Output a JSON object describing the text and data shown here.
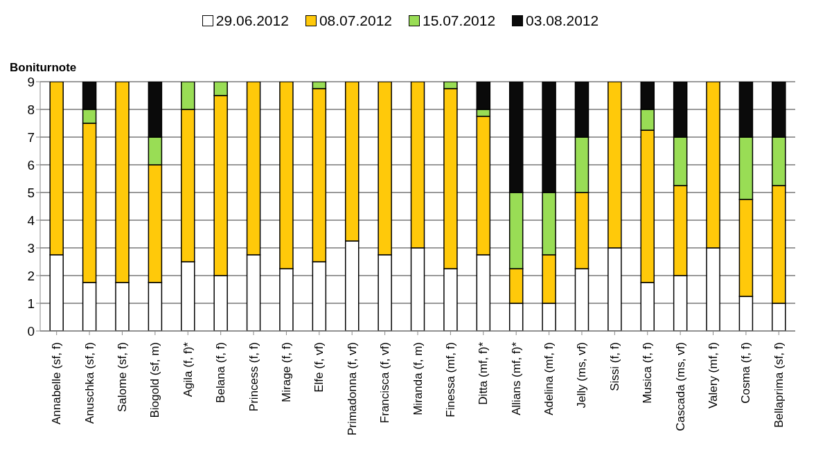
{
  "chart_data": {
    "type": "bar",
    "stacked": true,
    "ylabel": "Boniturnote",
    "legend": "top",
    "grid": "y",
    "categories": [
      "Annabelle (sf, f)",
      "Anuschka (sf, f)",
      "Salome (sf, f)",
      "Biogold (sf, m)",
      "Agila (f, f)*",
      "Belana (f, f)",
      "Princess (f, f)",
      "Mirage (f, f)",
      "Elfe (f, vf)",
      "Primadonna (f, vf)",
      "Francisca (f, vf)",
      "Miranda (f, m)",
      "Finessa (mf, f)",
      "Ditta (mf, f)*",
      "Allians (mf, f)*",
      "Adelina (mf, f)",
      "Jelly (ms, vf)",
      "Sissi (f, f)",
      "Musica (f, f)",
      "Cascada (ms, vf)",
      "Valery (mf, f)",
      "Cosma (f, f)",
      "Bellaprima (sf, f)"
    ],
    "ylim": [
      0,
      9
    ],
    "yticks": [
      0,
      1,
      2,
      3,
      4,
      5,
      6,
      7,
      8,
      9
    ],
    "series": [
      {
        "name": "29.06.2012",
        "color": "#ffffff",
        "values": [
          2.75,
          1.75,
          1.75,
          1.75,
          2.5,
          2,
          2.75,
          2.25,
          2.5,
          3.25,
          2.75,
          3,
          2.25,
          2.75,
          1,
          1,
          2.25,
          3,
          1.75,
          2,
          3,
          1.25,
          1
        ]
      },
      {
        "name": "08.07.2012",
        "color": "#ffc90a",
        "values": [
          6.25,
          5.75,
          7.25,
          4.25,
          5.5,
          6.5,
          6.25,
          6.75,
          6.25,
          5.75,
          6.25,
          6,
          6.5,
          5,
          1.25,
          1.75,
          2.75,
          6,
          5.5,
          3.25,
          6,
          3.5,
          4.25
        ]
      },
      {
        "name": "15.07.2012",
        "color": "#99dd55",
        "values": [
          0,
          0.5,
          0,
          1,
          1,
          0.5,
          0,
          0,
          0.25,
          0,
          0,
          0,
          0.25,
          0.25,
          2.75,
          2.25,
          2,
          0,
          0.75,
          1.75,
          0,
          2.25,
          1.75
        ]
      },
      {
        "name": "03.08.2012",
        "color": "#0a0a0a",
        "values": [
          0,
          1,
          0,
          2,
          0,
          0,
          0,
          0,
          0,
          0,
          0,
          0,
          0,
          1,
          4,
          4,
          2,
          0,
          1,
          2,
          0,
          2,
          2
        ]
      }
    ]
  }
}
